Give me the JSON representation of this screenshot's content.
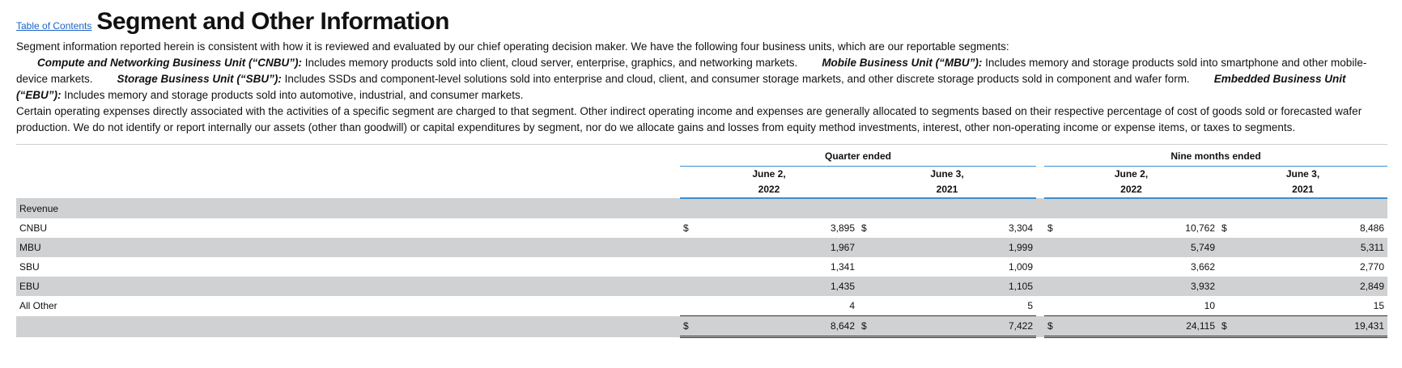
{
  "header": {
    "toc_link": "Table of Contents",
    "title": "Segment and Other Information"
  },
  "intro": "Segment information reported herein is consistent with how it is reviewed and evaluated by our chief operating decision maker. We have the following four business units, which are our reportable segments:",
  "definitions": [
    {
      "name": "Compute and Networking Business Unit (“CNBU”):",
      "text": " Includes memory products sold into client, cloud server, enterprise, graphics, and networking markets."
    },
    {
      "name": "Mobile Business Unit (“MBU”):",
      "text": " Includes memory and storage products sold into smartphone and other mobile-device markets."
    },
    {
      "name": "Storage Business Unit (“SBU”):",
      "text": " Includes SSDs and component-level solutions sold into enterprise and cloud, client, and consumer storage markets, and other discrete storage products sold in component and wafer form."
    },
    {
      "name": "Embedded Business Unit (“EBU”):",
      "text": " Includes memory and storage products sold into automotive, industrial, and consumer markets."
    }
  ],
  "operating_expenses": "Certain operating expenses directly associated with the activities of a specific segment are charged to that segment. Other indirect operating income and expenses are generally allocated to segments based on their respective percentage of cost of goods sold or forecasted wafer production. We do not identify or report internally our assets (other than goodwill) or capital expenditures by segment, nor do we allocate gains and losses from equity method investments, interest, other non-operating income or expense items, or taxes to segments.",
  "table": {
    "group_quarter": "Quarter ended",
    "group_nine": "Nine months ended",
    "col_q1_line1": "June 2,",
    "col_q1_line2": "2022",
    "col_q2_line1": "June 3,",
    "col_q2_line2": "2021",
    "col_n1_line1": "June 2,",
    "col_n1_line2": "2022",
    "col_n2_line1": "June 3,",
    "col_n2_line2": "2021",
    "section_label": "Revenue",
    "currency": "$",
    "rows": [
      {
        "label": "CNBU",
        "q1": "3,895",
        "q2": "3,304",
        "n1": "10,762",
        "n2": "8,486"
      },
      {
        "label": "MBU",
        "q1": "1,967",
        "q2": "1,999",
        "n1": "5,749",
        "n2": "5,311"
      },
      {
        "label": "SBU",
        "q1": "1,341",
        "q2": "1,009",
        "n1": "3,662",
        "n2": "2,770"
      },
      {
        "label": "EBU",
        "q1": "1,435",
        "q2": "1,105",
        "n1": "3,932",
        "n2": "2,849"
      },
      {
        "label": "All Other",
        "q1": "4",
        "q2": "5",
        "n1": "10",
        "n2": "15"
      }
    ],
    "total": {
      "q1": "8,642",
      "q2": "7,422",
      "n1": "24,115",
      "n2": "19,431"
    }
  }
}
